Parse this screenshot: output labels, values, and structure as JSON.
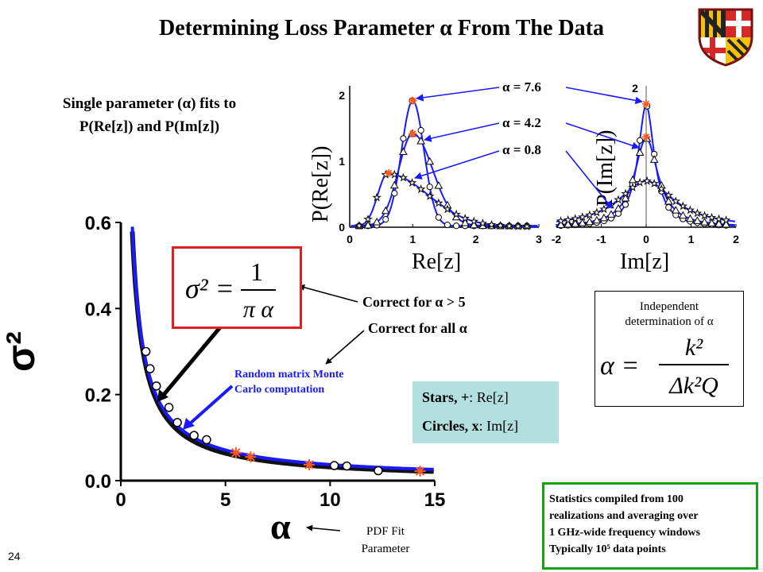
{
  "title": "Determining Loss Parameter α From The Data",
  "subtitle_lines": [
    "Single parameter (α) fits to",
    "P(Re[z]) and P(Im[z])"
  ],
  "formula_main": {
    "lhs": "σ² =",
    "numerator": "1",
    "denominator": "π α"
  },
  "annotations": {
    "correct_gt5": "Correct for α > 5",
    "correct_all": "Correct for all α",
    "monte_carlo": [
      "Random matrix Monte",
      "Carlo computation"
    ],
    "pdf_fit": [
      "PDF Fit",
      "Parameter"
    ]
  },
  "legend": {
    "stars_label": "Stars, +",
    "stars_value": ": Re[z]",
    "circles_label": "Circles, x",
    "circles_value": ": Im[z]"
  },
  "independent": {
    "title_lines": [
      "Independent",
      "determination of α"
    ],
    "formula": {
      "lhs": "α =",
      "numerator": "k²",
      "denominator": "Δk²Q"
    }
  },
  "stats": {
    "lines": [
      "Statistics compiled from 100",
      "realizations and averaging over",
      "1 GHz-wide frequency windows",
      "Typically 10⁵ data points"
    ]
  },
  "page_number": "24",
  "alpha_labels": [
    "α = 7.6",
    "α = 4.2",
    "α = 0.8"
  ],
  "colors": {
    "accent_blue": "#1a1aff",
    "red_box": "#e02020",
    "green_box": "#19a019",
    "legend_bg": "#b2dfe0",
    "star_orange": "#ff5a1e"
  },
  "chart_data": [
    {
      "type": "scatter",
      "xlabel": "α",
      "ylabel": "σ²",
      "xlim": [
        0,
        15
      ],
      "ylim": [
        0,
        0.6
      ],
      "xticks": [
        "0",
        "5",
        "10",
        "15"
      ],
      "yticks": [
        "0.0",
        "0.2",
        "0.4",
        "0.6"
      ],
      "series": [
        {
          "name": "Circles, x: Im[z]",
          "x": [
            1.2,
            1.4,
            1.7,
            2.3,
            2.7,
            3.5,
            4.1,
            10.2,
            10.8,
            12.3
          ],
          "y": [
            0.3,
            0.26,
            0.22,
            0.17,
            0.135,
            0.105,
            0.095,
            0.035,
            0.034,
            0.023
          ]
        },
        {
          "name": "Stars, +: Re[z]",
          "x": [
            5.5,
            6.2,
            9.0,
            14.3
          ],
          "y": [
            0.065,
            0.055,
            0.037,
            0.022
          ]
        }
      ],
      "curves": [
        "σ² = 1/(πα)",
        "Random matrix Monte Carlo computation"
      ]
    },
    {
      "type": "line",
      "xlabel": "Re[z]",
      "ylabel": "P(Re[z])",
      "xlim": [
        0,
        3
      ],
      "ylim": [
        0,
        2
      ],
      "xticks": [
        "0",
        "1",
        "2",
        "3"
      ],
      "yticks": [
        "0",
        "1",
        "2"
      ],
      "series": [
        {
          "name": "α = 7.6",
          "peak_x": 1.0,
          "peak_y": 1.9
        },
        {
          "name": "α = 4.2",
          "peak_x": 1.0,
          "peak_y": 1.4
        },
        {
          "name": "α = 0.8",
          "peak_x": 0.6,
          "peak_y": 0.8
        }
      ]
    },
    {
      "type": "line",
      "xlabel": "Im[z]",
      "ylabel": "P(Im[z])",
      "xlim": [
        -2,
        2
      ],
      "ylim": [
        0,
        2
      ],
      "xticks": [
        "-2",
        "-1",
        "0",
        "1",
        "2"
      ],
      "yticks": [
        "2"
      ],
      "series": [
        {
          "name": "α = 7.6",
          "peak_y": 1.85
        },
        {
          "name": "α = 4.2",
          "peak_y": 1.35
        },
        {
          "name": "α = 0.8",
          "peak_y": 0.7
        }
      ]
    }
  ]
}
